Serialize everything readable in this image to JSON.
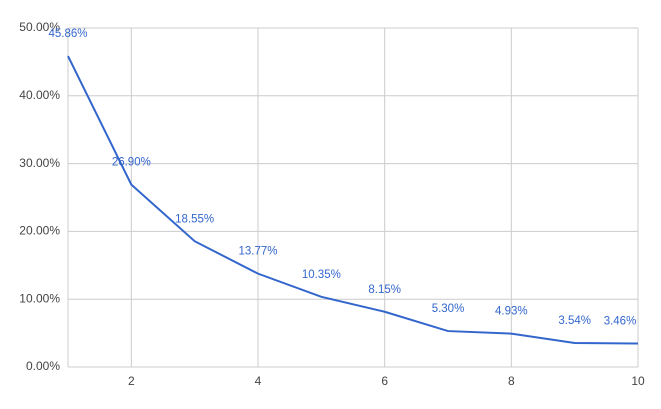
{
  "chart_data": {
    "type": "line",
    "x": [
      1,
      2,
      3,
      4,
      5,
      6,
      7,
      8,
      9,
      10
    ],
    "series": [
      {
        "color": "#3366cc",
        "values": [
          45.86,
          26.9,
          18.55,
          13.77,
          10.35,
          8.15,
          5.3,
          4.93,
          3.54,
          3.46
        ],
        "value_labels": [
          "45.86%",
          "26.90%",
          "18.55%",
          "13.77%",
          "10.35%",
          "8.15%",
          "5.30%",
          "4.93%",
          "3.54%",
          "3.46%"
        ]
      }
    ],
    "xlim": [
      1,
      10
    ],
    "xticks": [
      2,
      4,
      6,
      8,
      10
    ],
    "ylim": [
      0,
      50
    ],
    "yticks": [
      {
        "value": 0,
        "label": "0.00%"
      },
      {
        "value": 10,
        "label": "10.00%"
      },
      {
        "value": 20,
        "label": "20.00%"
      },
      {
        "value": 30,
        "label": "30.00%"
      },
      {
        "value": 40,
        "label": "40.00%"
      },
      {
        "value": 50,
        "label": "50.00%"
      }
    ],
    "grid": true
  }
}
